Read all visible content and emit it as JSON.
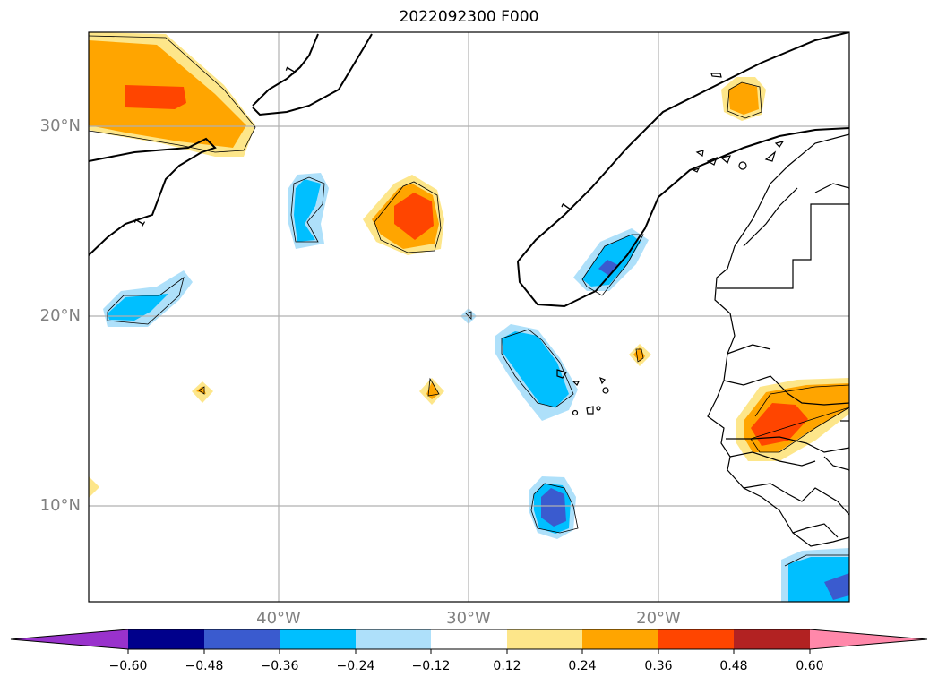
{
  "title": "2022092300 F000",
  "map": {
    "lat_ticks": [
      "30°N",
      "20°N",
      "10°N"
    ],
    "lon_ticks": [
      "40°W",
      "30°W",
      "20°W"
    ],
    "contour_labels": [
      "1",
      "1",
      "1"
    ]
  },
  "colorbar": {
    "ticks": [
      "−0.60",
      "−0.48",
      "−0.36",
      "−0.24",
      "−0.12",
      "0.12",
      "0.24",
      "0.36",
      "0.48",
      "0.60"
    ],
    "colors": [
      "#9932cc",
      "#00008b",
      "#3a5bcf",
      "#00bfff",
      "#aee0fa",
      "#ffffff",
      "#fde68a",
      "#ffa500",
      "#ff4500",
      "#b22222",
      "#ff88aa"
    ]
  },
  "palette": {
    "light_yellow": "#fde68a",
    "orange": "#ffa500",
    "red_orange": "#ff4500",
    "light_blue": "#aee0fa",
    "deep_sky_blue": "#00bfff",
    "royal_blue": "#3a5bcf",
    "grid": "#b0b0b0"
  }
}
